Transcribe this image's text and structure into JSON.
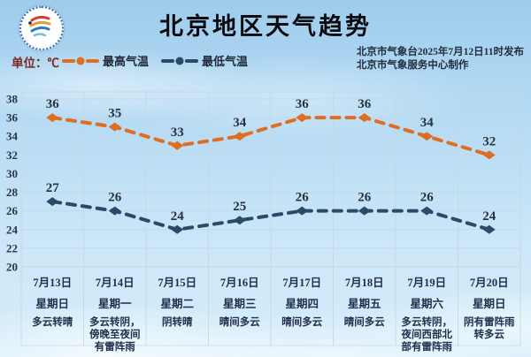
{
  "header": {
    "title": "北京地区天气趋势",
    "unit_label": "单位：℃",
    "publisher_line1": "北京市气象台2025年7月12日11时发布",
    "publisher_line2": "北京市气象服务中心制作"
  },
  "legend": [
    {
      "label": "最高气温",
      "color": "#dd6e23"
    },
    {
      "label": "最低气温",
      "color": "#2b4a68"
    }
  ],
  "chart_data": {
    "type": "line",
    "title": "北京地区天气趋势",
    "xlabel": "",
    "ylabel": "℃",
    "ylim": [
      20,
      38
    ],
    "ytick_step": 2,
    "grid": true,
    "legend_position": "top-left",
    "categories": [
      "7月13日",
      "7月14日",
      "7月15日",
      "7月16日",
      "7月17日",
      "7月18日",
      "7月19日",
      "7月20日"
    ],
    "weekdays": [
      "星期日",
      "星期一",
      "星期二",
      "星期三",
      "星期四",
      "星期五",
      "星期六",
      "星期日"
    ],
    "weather": [
      "多云转晴",
      "多云转阴，傍晚至夜间有雷阵雨",
      "阴转晴",
      "晴间多云",
      "晴间多云",
      "晴间多云",
      "多云转阴，夜间西部北部有雷阵雨",
      "阴有雷阵雨转多云"
    ],
    "series": [
      {
        "key": "high-temp",
        "name": "最高气温",
        "color": "#dd6e23",
        "values": [
          36,
          35,
          33,
          34,
          36,
          36,
          34,
          32
        ]
      },
      {
        "key": "low-temp",
        "name": "最低气温",
        "color": "#2b4a68",
        "values": [
          27,
          26,
          24,
          25,
          26,
          26,
          26,
          24
        ]
      }
    ],
    "gridline_color": "#c6d7e3",
    "value_label_color": "#28313e",
    "axis_label_color": "#2c3542"
  }
}
